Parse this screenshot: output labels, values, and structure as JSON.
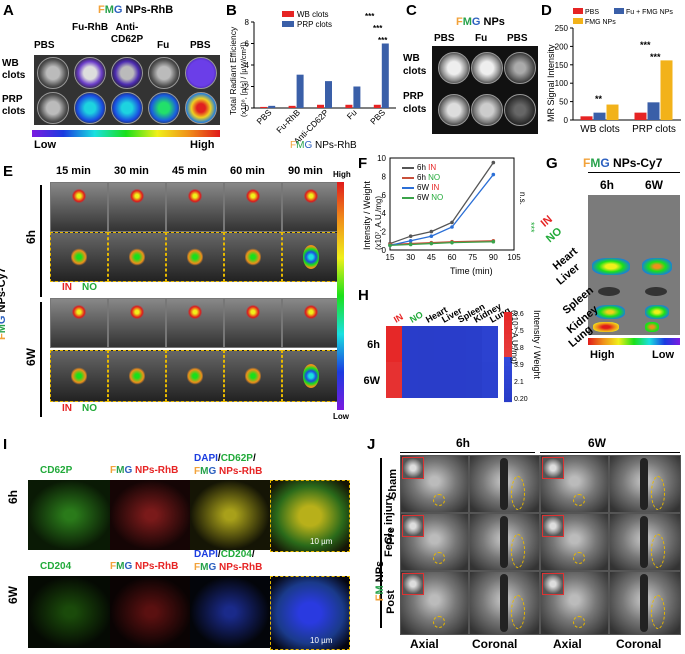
{
  "panels": {
    "A": "A",
    "B": "B",
    "C": "C",
    "D": "D",
    "E": "E",
    "F": "F",
    "G": "G",
    "H": "H",
    "I": "I",
    "J": "J"
  },
  "brand": {
    "f": "F",
    "m": "M",
    "g": "G"
  },
  "panelA": {
    "title_suffix": " NPs-RhB",
    "cols": [
      "PBS",
      "Fu-RhB",
      "Anti-CD62P",
      "Fu",
      "PBS"
    ],
    "rows": [
      "WB clots",
      "PRP clots"
    ],
    "scale_low": "Low",
    "scale_high": "High"
  },
  "panelB": {
    "ylabel": "Total Radiant Efficiency",
    "yunits": "(x10⁸, [p/s] / [µW/cm²])",
    "xlabel_suffix": " NPs-RhB",
    "legend": [
      "WB clots",
      "PRP clots"
    ],
    "sig": [
      "***",
      "***",
      "***"
    ]
  },
  "panelC": {
    "title_suffix": " NPs",
    "cols": [
      "PBS",
      "Fu",
      "PBS"
    ],
    "rows": [
      "WB clots",
      "PRP clots"
    ]
  },
  "panelD": {
    "ylabel": "MR Signal Intensity",
    "legend": [
      "PBS",
      "Fu + FMG NPs",
      "FMG NPs"
    ],
    "sig": [
      "**",
      "***",
      "***"
    ]
  },
  "panelE": {
    "times": [
      "15 min",
      "30 min",
      "45 min",
      "60 min",
      "90 min"
    ],
    "rows": [
      "6h",
      "6W"
    ],
    "side_label_suffix": " NPs-Cy7",
    "scale_high": "High",
    "scale_low": "Low",
    "in": "IN",
    "no": "NO"
  },
  "panelF": {
    "ylabel": "Intensity / Weight",
    "yunits": "(x10⁷, A.U./mg)",
    "xlabel": "Time (min)",
    "ns": "n.s.",
    "sig": "***",
    "legend": [
      {
        "grp": "6h",
        "side": "IN"
      },
      {
        "grp": "6h",
        "side": "NO"
      },
      {
        "grp": "6W",
        "side": "IN"
      },
      {
        "grp": "6W",
        "side": "NO"
      }
    ]
  },
  "panelG": {
    "title_suffix": " NPs-Cy7",
    "cols": [
      "6h",
      "6W"
    ],
    "organs": [
      "IN",
      "NO",
      "Heart",
      "Liver",
      "Spleen",
      "Kidney",
      "Lung"
    ],
    "scale_high": "High",
    "scale_low": "Low"
  },
  "panelH": {
    "cols": [
      "IN",
      "NO",
      "Heart",
      "Liver",
      "Spleen",
      "Kidney",
      "Lung"
    ],
    "rows": [
      "6h",
      "6W"
    ],
    "ticks": [
      "9.6",
      "7.5",
      "5.8",
      "3.9",
      "2.1",
      "0.20"
    ],
    "units": "(x10⁷, A.U./mg)",
    "cbar_label": "Intensity / Weight"
  },
  "panelI": {
    "rows": [
      "6h",
      "6W"
    ],
    "markers": [
      "CD62P",
      "CD204"
    ],
    "np_label_suffix": " NPs-RhB",
    "dapi": "DAPI",
    "scale": "10 µm"
  },
  "panelJ": {
    "groups": [
      "6h",
      "6W"
    ],
    "views": [
      "Axial",
      "Coronal",
      "Axial",
      "Coronal"
    ],
    "rows": [
      "Sham",
      "Pre",
      "Post"
    ],
    "side1": "FeCl₃ injury",
    "side2_suffix": " NPs"
  },
  "chart_data": [
    {
      "type": "bar",
      "title": "",
      "ylabel": "Total Radiant Efficiency (x10⁸, [p/s] / [µW/cm²])",
      "categories": [
        "PBS",
        "Fu-RhB",
        "Anti-CD62P",
        "Fu",
        "PBS"
      ],
      "ylim": [
        0,
        8
      ],
      "series": [
        {
          "name": "WB clots",
          "color": "#e62424",
          "values": [
            0.1,
            0.2,
            0.3,
            0.3,
            0.3
          ]
        },
        {
          "name": "PRP clots",
          "color": "#3a5fa8",
          "values": [
            0.2,
            3.1,
            2.5,
            2.0,
            6.0
          ]
        }
      ]
    },
    {
      "type": "bar",
      "title": "",
      "ylabel": "MR Signal Intensity",
      "categories": [
        "WB clots",
        "PRP clots"
      ],
      "ylim": [
        0,
        250
      ],
      "series": [
        {
          "name": "PBS",
          "color": "#e62424",
          "values": [
            10,
            20
          ]
        },
        {
          "name": "Fu + FMG NPs",
          "color": "#3a5fa8",
          "values": [
            20,
            48
          ]
        },
        {
          "name": "FMG NPs",
          "color": "#f2b21a",
          "values": [
            42,
            162
          ]
        }
      ]
    },
    {
      "type": "line",
      "title": "",
      "xlabel": "Time (min)",
      "ylabel": "Intensity / Weight (x10⁷, A.U./mg)",
      "x": [
        15,
        30,
        45,
        60,
        90
      ],
      "xlim": [
        15,
        105
      ],
      "ylim": [
        0,
        10
      ],
      "series": [
        {
          "name": "6h IN",
          "color": "#555555",
          "values": [
            0.7,
            1.5,
            2.0,
            3.0,
            9.5
          ]
        },
        {
          "name": "6h NO",
          "color": "#c8503a",
          "values": [
            0.6,
            0.7,
            0.8,
            0.9,
            1.0
          ]
        },
        {
          "name": "6W IN",
          "color": "#2b6fd6",
          "values": [
            0.5,
            1.0,
            1.5,
            2.5,
            8.2
          ]
        },
        {
          "name": "6W NO",
          "color": "#3aa34a",
          "values": [
            0.5,
            0.6,
            0.7,
            0.8,
            0.9
          ]
        }
      ]
    },
    {
      "type": "heatmap",
      "title": "",
      "x": [
        "IN",
        "NO",
        "Heart",
        "Liver",
        "Spleen",
        "Kidney",
        "Lung"
      ],
      "y": [
        "6h",
        "6W"
      ],
      "values": [
        [
          9.6,
          0.4,
          0.3,
          0.4,
          0.4,
          0.6,
          2.0
        ],
        [
          7.5,
          0.4,
          0.3,
          0.3,
          0.4,
          0.5,
          1.6
        ]
      ]
    }
  ]
}
